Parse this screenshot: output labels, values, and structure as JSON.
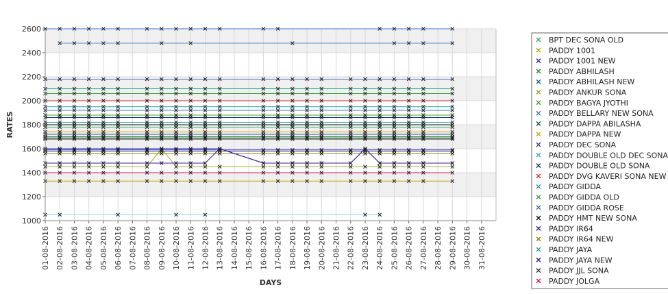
{
  "chart_data": {
    "type": "line",
    "xlabel": "DAYS",
    "ylabel": "RATES",
    "ylim": [
      1000,
      2600
    ],
    "yticks": [
      1000,
      1200,
      1400,
      1600,
      1800,
      2000,
      2200,
      2400,
      2600
    ],
    "categories": [
      "01-08-2016",
      "02-08-2016",
      "03-08-2016",
      "04-08-2016",
      "05-08-2016",
      "06-08-2016",
      "07-08-2016",
      "08-08-2016",
      "09-08-2016",
      "10-08-2016",
      "11-08-2016",
      "12-08-2016",
      "13-08-2016",
      "14-08-2016",
      "15-08-2016",
      "16-08-2016",
      "17-08-2016",
      "18-08-2016",
      "19-08-2016",
      "20-08-2016",
      "21-08-2016",
      "22-08-2016",
      "23-08-2016",
      "24-08-2016",
      "25-08-2016",
      "26-08-2016",
      "27-08-2016",
      "28-08-2016",
      "29-08-2016",
      "30-08-2016",
      "31-08-2016"
    ],
    "grid": true,
    "legend_position": "right",
    "series": [
      {
        "name": "BPT DEC SONA OLD",
        "color": "#3aa86b",
        "values": [
          1780,
          1780,
          1780,
          1780,
          1780,
          1780,
          null,
          1780,
          1780,
          1780,
          1780,
          1780,
          1780,
          null,
          null,
          1780,
          1780,
          1780,
          1780,
          1780,
          null,
          1780,
          1780,
          1780,
          1780,
          1780,
          1780,
          null,
          1780,
          null,
          null
        ]
      },
      {
        "name": "PADDY 1001",
        "color": "#b5a800",
        "values": [
          1330,
          1330,
          1330,
          1330,
          1330,
          1330,
          null,
          1330,
          1330,
          1330,
          1330,
          1330,
          1330,
          null,
          null,
          1330,
          1330,
          1330,
          1330,
          1330,
          null,
          1330,
          1330,
          1330,
          1330,
          1330,
          1330,
          null,
          1330,
          null,
          null
        ]
      },
      {
        "name": "PADDY 1001 NEW",
        "color": "#1d1dcf",
        "values": [
          1600,
          1600,
          1600,
          1600,
          1600,
          1600,
          null,
          1600,
          1600,
          1600,
          1600,
          1600,
          1600,
          null,
          null,
          1480,
          1480,
          1480,
          1480,
          1480,
          null,
          1480,
          1600,
          1480,
          1480,
          1480,
          1480,
          null,
          1480,
          null,
          null
        ]
      },
      {
        "name": "PADDY ABHILASH",
        "color": "#2e8b2e",
        "values": [
          1700,
          1700,
          1700,
          1700,
          1700,
          1700,
          null,
          1700,
          1700,
          1700,
          1700,
          1700,
          1700,
          null,
          null,
          1700,
          1700,
          1700,
          1700,
          1700,
          null,
          1700,
          1700,
          1700,
          1700,
          1700,
          1700,
          null,
          1700,
          null,
          null
        ]
      },
      {
        "name": "PADDY ABHILASH NEW",
        "color": "#1f5fa8",
        "values": [
          1720,
          1720,
          1720,
          1720,
          1720,
          1720,
          null,
          1720,
          1720,
          1720,
          1720,
          1720,
          1720,
          null,
          null,
          1720,
          1720,
          1720,
          1720,
          1720,
          null,
          1720,
          1720,
          1720,
          1720,
          1720,
          1720,
          null,
          1720,
          null,
          null
        ]
      },
      {
        "name": "PADDY ANKUR SONA",
        "color": "#a7a72c",
        "values": [
          1450,
          1450,
          1450,
          1450,
          1450,
          1450,
          null,
          1450,
          1600,
          1450,
          1450,
          1450,
          1450,
          null,
          null,
          1450,
          1450,
          1450,
          1450,
          1450,
          null,
          1450,
          1450,
          1450,
          1450,
          1450,
          1450,
          null,
          1450,
          null,
          null
        ]
      },
      {
        "name": "PADDY BAGYA JYOTHI",
        "color": "#4c9a2a",
        "values": [
          1880,
          1880,
          1880,
          1880,
          1880,
          1880,
          null,
          1880,
          1880,
          1880,
          1880,
          1880,
          1880,
          null,
          null,
          1880,
          1880,
          1880,
          1880,
          1880,
          null,
          1880,
          1880,
          1880,
          1880,
          1880,
          1880,
          null,
          1880,
          null,
          null
        ]
      },
      {
        "name": "PADDY BELLARY NEW SONA",
        "color": "#3a7bd5",
        "values": [
          1920,
          1920,
          1920,
          1920,
          1920,
          1920,
          null,
          1920,
          1920,
          1920,
          1920,
          1920,
          1920,
          null,
          null,
          1920,
          1920,
          1920,
          1920,
          1920,
          null,
          1920,
          1920,
          1920,
          1920,
          1920,
          1920,
          null,
          1920,
          null,
          null
        ]
      },
      {
        "name": "PADDY DAPPA ABILASHA",
        "color": "#1e5b3a",
        "values": [
          1690,
          1690,
          1690,
          1690,
          1690,
          1690,
          null,
          1690,
          1690,
          1690,
          1690,
          1690,
          1690,
          null,
          null,
          1690,
          1690,
          1690,
          1690,
          1690,
          null,
          1690,
          1690,
          1690,
          1690,
          1690,
          1690,
          null,
          1690,
          null,
          null
        ]
      },
      {
        "name": "PADDY DAPPA NEW",
        "color": "#d9a400",
        "values": [
          1740,
          1740,
          1740,
          1740,
          1740,
          1740,
          null,
          1740,
          1740,
          1740,
          1740,
          1740,
          1740,
          null,
          null,
          1740,
          1740,
          1740,
          1740,
          1740,
          null,
          1740,
          1740,
          1740,
          1740,
          1740,
          1740,
          null,
          1740,
          null,
          null
        ]
      },
      {
        "name": "PADDY DEC SONA",
        "color": "#3c3c8f",
        "values": [
          1580,
          1580,
          1580,
          1580,
          1580,
          1580,
          null,
          1580,
          1580,
          1580,
          1580,
          1580,
          1580,
          null,
          null,
          1580,
          1580,
          1580,
          1580,
          1580,
          null,
          1580,
          1580,
          1580,
          1580,
          1580,
          1580,
          null,
          1580,
          null,
          null
        ]
      },
      {
        "name": "PADDY DOUBLE OLD DEC SONA",
        "color": "#3aa8a8",
        "values": [
          1820,
          1820,
          1820,
          1820,
          1820,
          1820,
          null,
          1820,
          1820,
          1820,
          1820,
          1820,
          1820,
          null,
          null,
          1820,
          1820,
          1820,
          1820,
          1820,
          null,
          1820,
          1820,
          1820,
          1820,
          1820,
          1820,
          null,
          1820,
          null,
          null
        ]
      },
      {
        "name": "PADDY DOUBLE OLD SONA",
        "color": "#0d3b66",
        "values": [
          1860,
          1860,
          1860,
          1860,
          1860,
          1860,
          null,
          1860,
          1860,
          1860,
          1860,
          1860,
          1860,
          null,
          null,
          1860,
          1860,
          1860,
          1860,
          1860,
          null,
          1860,
          1860,
          1860,
          1860,
          1860,
          1860,
          null,
          1860,
          null,
          null
        ]
      },
      {
        "name": "PADDY DVG KAVERI SONA NEW",
        "color": "#d62828",
        "values": [
          2000,
          2000,
          2000,
          2000,
          2000,
          2000,
          null,
          2000,
          2000,
          2000,
          2000,
          2000,
          2000,
          null,
          null,
          2000,
          2000,
          2000,
          2000,
          2000,
          null,
          2000,
          2000,
          2000,
          2000,
          2000,
          2000,
          null,
          2000,
          null,
          null
        ]
      },
      {
        "name": "PADDY GIDDA",
        "color": "#2aa198",
        "values": [
          1950,
          1950,
          1950,
          1950,
          1950,
          1950,
          null,
          1950,
          1950,
          1950,
          1950,
          1950,
          1950,
          null,
          null,
          1950,
          1950,
          1950,
          1950,
          1950,
          null,
          1950,
          1950,
          1950,
          1950,
          1950,
          1950,
          null,
          1950,
          null,
          null
        ]
      },
      {
        "name": "PADDY GIDDA OLD",
        "color": "#3aa83a",
        "values": [
          2060,
          2060,
          2060,
          2060,
          2060,
          2060,
          null,
          2060,
          2060,
          2060,
          2060,
          2060,
          2060,
          null,
          null,
          2060,
          2060,
          2060,
          2060,
          2060,
          null,
          2060,
          2060,
          2060,
          2060,
          2060,
          2060,
          null,
          2060,
          null,
          null
        ]
      },
      {
        "name": "PADDY GIDDA ROSE",
        "color": "#4a6fb5",
        "values": [
          2180,
          2180,
          2180,
          2180,
          2180,
          2180,
          null,
          2180,
          2180,
          2180,
          2180,
          2180,
          2180,
          null,
          null,
          2180,
          2180,
          2180,
          2180,
          2180,
          null,
          2180,
          2180,
          2180,
          2180,
          2180,
          2180,
          null,
          2180,
          null,
          null
        ]
      },
      {
        "name": "PADDY HMT NEW SONA",
        "color": "#111111",
        "values": [
          1800,
          1800,
          1800,
          1800,
          1800,
          1800,
          null,
          1800,
          1800,
          1800,
          1800,
          1800,
          1800,
          null,
          null,
          1800,
          1800,
          1800,
          1800,
          1800,
          null,
          1800,
          1800,
          1800,
          1800,
          1800,
          1800,
          null,
          1800,
          null,
          null
        ]
      },
      {
        "name": "PADDY IR64",
        "color": "#2020a0",
        "values": [
          1590,
          1590,
          1590,
          1590,
          1590,
          1590,
          null,
          1590,
          1590,
          1590,
          1590,
          1590,
          1590,
          null,
          null,
          1590,
          1590,
          1590,
          1590,
          1590,
          null,
          1590,
          1590,
          1590,
          1590,
          1590,
          1590,
          null,
          1590,
          null,
          null
        ]
      },
      {
        "name": "PADDY IR64 NEW",
        "color": "#8a8a00",
        "values": [
          1560,
          1560,
          1560,
          1560,
          1560,
          1560,
          null,
          1560,
          1560,
          1560,
          1560,
          1560,
          1560,
          null,
          null,
          1560,
          1560,
          1560,
          1560,
          1560,
          null,
          1560,
          1560,
          1560,
          1560,
          1560,
          1560,
          null,
          1560,
          null,
          null
        ]
      },
      {
        "name": "PADDY JAYA",
        "color": "#1aa88a",
        "values": [
          2100,
          2100,
          2100,
          2100,
          2100,
          2100,
          null,
          2100,
          2100,
          2100,
          2100,
          2100,
          2100,
          null,
          null,
          2100,
          2100,
          2100,
          2100,
          2100,
          null,
          2100,
          2100,
          2100,
          2100,
          2100,
          2100,
          null,
          2100,
          null,
          null
        ]
      },
      {
        "name": "PADDY JAYA NEW",
        "color": "#3a1a9a",
        "values": [
          1480,
          1480,
          1480,
          1480,
          1480,
          1480,
          null,
          1480,
          1480,
          1480,
          1480,
          1480,
          1600,
          null,
          null,
          1480,
          1480,
          1480,
          1480,
          1480,
          null,
          1480,
          1600,
          1480,
          1480,
          1480,
          1480,
          null,
          1480,
          null,
          null
        ]
      },
      {
        "name": "PADDY JJL SONA",
        "color": "#333333",
        "values": [
          1680,
          1680,
          1680,
          1680,
          1680,
          1680,
          null,
          1680,
          1680,
          1680,
          1680,
          1680,
          1680,
          null,
          null,
          1680,
          1680,
          1680,
          1680,
          1680,
          null,
          1680,
          1680,
          1680,
          1680,
          1680,
          1680,
          null,
          1680,
          null,
          null
        ]
      },
      {
        "name": "PADDY JOLGA",
        "color": "#d4145a",
        "values": [
          1400,
          1400,
          1400,
          1400,
          1400,
          1400,
          null,
          1400,
          1400,
          1400,
          1400,
          1400,
          1400,
          null,
          null,
          1400,
          1400,
          1400,
          1400,
          1400,
          null,
          1400,
          1400,
          1400,
          1400,
          1400,
          1400,
          null,
          1400,
          null,
          null
        ]
      },
      {
        "name": "",
        "color": "#3a6fd5",
        "values": [
          2600,
          2600,
          2600,
          2600,
          2600,
          2600,
          null,
          2600,
          2600,
          2600,
          2600,
          2600,
          2600,
          null,
          null,
          2600,
          2600,
          null,
          null,
          null,
          null,
          null,
          null,
          2600,
          2600,
          2600,
          2600,
          null,
          2600,
          null,
          null
        ]
      },
      {
        "name": "",
        "color": "#5a8fd5",
        "values": [
          null,
          2480,
          2480,
          2480,
          2480,
          2480,
          null,
          null,
          2480,
          null,
          2480,
          null,
          null,
          null,
          null,
          null,
          null,
          2480,
          null,
          null,
          null,
          null,
          null,
          null,
          2480,
          2480,
          2480,
          null,
          2480,
          null,
          null
        ]
      },
      {
        "name": "",
        "color": "#8fd5e5",
        "values": [
          1050,
          1050,
          null,
          null,
          null,
          1050,
          null,
          null,
          null,
          1050,
          null,
          1050,
          null,
          null,
          null,
          null,
          null,
          null,
          null,
          null,
          null,
          null,
          1050,
          1050,
          null,
          null,
          null,
          null,
          null,
          null,
          null
        ]
      }
    ]
  }
}
